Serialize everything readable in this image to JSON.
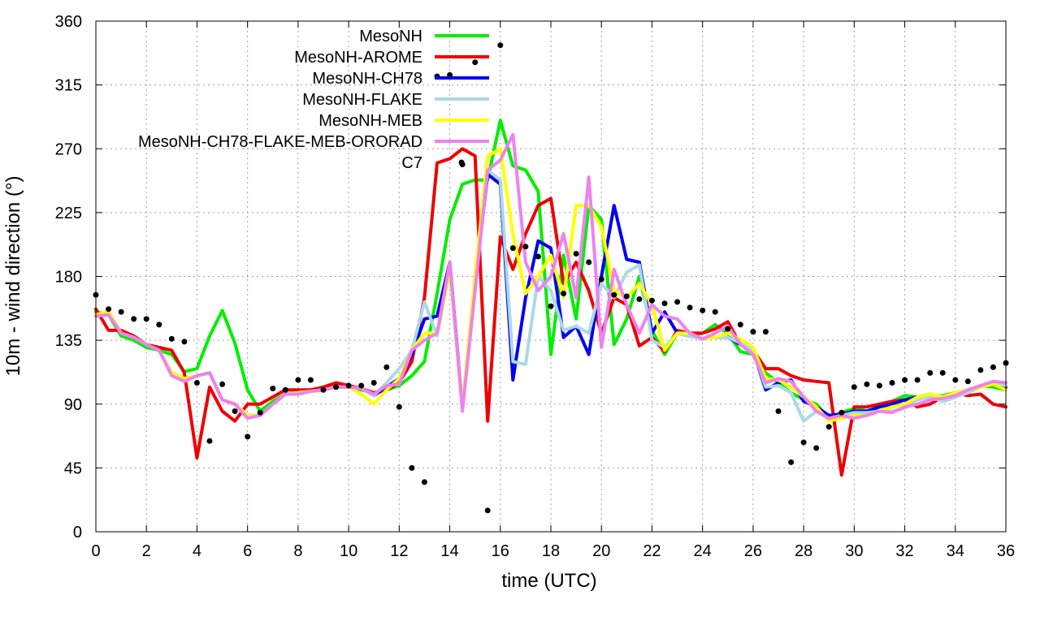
{
  "chart_data": {
    "type": "line",
    "title": "",
    "xlabel": "time (UTC)",
    "ylabel": "10m - wind direction (°)",
    "xlim": [
      0,
      36
    ],
    "ylim": [
      0,
      360
    ],
    "xticks": [
      0,
      2,
      4,
      6,
      8,
      10,
      12,
      14,
      16,
      18,
      20,
      22,
      24,
      26,
      28,
      30,
      32,
      34,
      36
    ],
    "yticks": [
      0,
      45,
      90,
      135,
      180,
      225,
      270,
      315,
      360
    ],
    "xtick_labels": [
      "0",
      "2",
      "4",
      "6",
      "8",
      "10",
      "12",
      "14",
      "16",
      "18",
      "20",
      "22",
      "24",
      "26",
      "28",
      "30",
      "32",
      "34",
      "36"
    ],
    "ytick_labels": [
      "0",
      "45",
      "90",
      "135",
      "180",
      "225",
      "270",
      "315",
      "360"
    ],
    "grid": "dashed",
    "legend_position": "top-center",
    "series": [
      {
        "name": "MesoNH",
        "color": "#00ee00",
        "style": "line",
        "x": [
          0,
          0.5,
          1,
          1.5,
          2,
          2.5,
          3,
          3.5,
          4,
          4.5,
          5,
          5.5,
          6,
          6.5,
          7,
          7.5,
          8,
          8.5,
          9,
          9.5,
          10,
          10.5,
          11,
          11.5,
          12,
          12.5,
          13,
          13.5,
          14,
          14.5,
          15,
          15.5,
          16,
          16.5,
          17,
          17.5,
          18,
          18.5,
          19,
          19.5,
          20,
          20.5,
          21,
          21.5,
          22,
          22.5,
          23,
          23.5,
          24,
          24.5,
          25,
          25.5,
          26,
          26.5,
          27,
          27.5,
          28,
          28.5,
          29,
          29.5,
          30,
          30.5,
          31,
          31.5,
          32,
          32.5,
          33,
          33.5,
          34,
          34.5,
          35,
          35.5,
          36
        ],
        "values": [
          155,
          153,
          138,
          135,
          130,
          128,
          125,
          113,
          115,
          138,
          156,
          133,
          100,
          85,
          92,
          97,
          98,
          100,
          102,
          102,
          102,
          100,
          98,
          100,
          103,
          110,
          120,
          168,
          220,
          245,
          248,
          248,
          290,
          258,
          255,
          240,
          125,
          195,
          150,
          230,
          220,
          132,
          150,
          180,
          142,
          125,
          140,
          138,
          140,
          146,
          140,
          127,
          125,
          112,
          105,
          98,
          93,
          90,
          80,
          84,
          87,
          85,
          88,
          92,
          96,
          95,
          95,
          96,
          98,
          100,
          103,
          102,
          100
        ]
      },
      {
        "name": "MesoNH-AROME",
        "color": "#ee0000",
        "style": "line",
        "x": [
          0,
          0.5,
          1,
          1.5,
          2,
          2.5,
          3,
          3.5,
          4,
          4.5,
          5,
          5.5,
          6,
          6.5,
          7,
          7.5,
          8,
          8.5,
          9,
          9.5,
          10,
          10.5,
          11,
          11.5,
          12,
          12.5,
          13,
          13.5,
          14,
          14.5,
          15,
          15.5,
          16,
          16.5,
          17,
          17.5,
          18,
          18.5,
          19,
          19.5,
          20,
          20.5,
          21,
          21.5,
          22,
          22.5,
          23,
          23.5,
          24,
          24.5,
          25,
          25.5,
          26,
          26.5,
          27,
          27.5,
          28,
          28.5,
          29,
          29.5,
          30,
          30.5,
          31,
          31.5,
          32,
          32.5,
          33,
          33.5,
          34,
          34.5,
          35,
          35.5,
          36
        ],
        "values": [
          157,
          142,
          142,
          138,
          132,
          130,
          128,
          112,
          52,
          102,
          85,
          78,
          90,
          90,
          95,
          100,
          100,
          100,
          102,
          105,
          103,
          101,
          98,
          100,
          105,
          120,
          165,
          260,
          263,
          270,
          265,
          78,
          208,
          185,
          210,
          230,
          235,
          175,
          190,
          170,
          140,
          165,
          160,
          131,
          137,
          127,
          142,
          140,
          140,
          143,
          148,
          132,
          128,
          115,
          115,
          110,
          107,
          106,
          105,
          40,
          88,
          88,
          90,
          92,
          93,
          88,
          90,
          95,
          98,
          96,
          97,
          90,
          88
        ]
      },
      {
        "name": "MesoNH-CH78",
        "color": "#0000ee",
        "style": "line",
        "x": [
          0,
          0.5,
          1,
          1.5,
          2,
          2.5,
          3,
          3.5,
          4,
          4.5,
          5,
          5.5,
          6,
          6.5,
          7,
          7.5,
          8,
          8.5,
          9,
          9.5,
          10,
          10.5,
          11,
          11.5,
          12,
          12.5,
          13,
          13.5,
          14,
          14.5,
          15,
          15.5,
          16,
          16.5,
          17,
          17.5,
          18,
          18.5,
          19,
          19.5,
          20,
          20.5,
          21,
          21.5,
          22,
          22.5,
          23,
          23.5,
          24,
          24.5,
          25,
          25.5,
          26,
          26.5,
          27,
          27.5,
          28,
          28.5,
          29,
          29.5,
          30,
          30.5,
          31,
          31.5,
          32,
          32.5,
          33,
          33.5,
          34,
          34.5,
          35,
          35.5,
          36
        ],
        "values": [
          153,
          155,
          140,
          137,
          132,
          128,
          112,
          108,
          110,
          112,
          93,
          90,
          82,
          82,
          90,
          97,
          98,
          99,
          100,
          102,
          102,
          101,
          96,
          102,
          108,
          125,
          150,
          152,
          190,
          88,
          175,
          252,
          245,
          107,
          165,
          205,
          200,
          137,
          145,
          125,
          180,
          230,
          192,
          190,
          140,
          155,
          140,
          138,
          136,
          137,
          137,
          132,
          128,
          100,
          105,
          107,
          92,
          88,
          82,
          83,
          85,
          85,
          88,
          90,
          93,
          95,
          97,
          92,
          95,
          100,
          102,
          104,
          102
        ]
      },
      {
        "name": "MesoNH-FLAKE",
        "color": "#add8e6",
        "style": "line",
        "x": [
          0,
          0.5,
          1,
          1.5,
          2,
          2.5,
          3,
          3.5,
          4,
          4.5,
          5,
          5.5,
          6,
          6.5,
          7,
          7.5,
          8,
          8.5,
          9,
          9.5,
          10,
          10.5,
          11,
          11.5,
          12,
          12.5,
          13,
          13.5,
          14,
          14.5,
          15,
          15.5,
          16,
          16.5,
          17,
          17.5,
          18,
          18.5,
          19,
          19.5,
          20,
          20.5,
          21,
          21.5,
          22,
          22.5,
          23,
          23.5,
          24,
          24.5,
          25,
          25.5,
          26,
          26.5,
          27,
          27.5,
          28,
          28.5,
          29,
          29.5,
          30,
          30.5,
          31,
          31.5,
          32,
          32.5,
          33,
          33.5,
          34,
          34.5,
          35,
          35.5,
          36
        ],
        "values": [
          153,
          155,
          140,
          137,
          132,
          128,
          112,
          108,
          110,
          112,
          93,
          90,
          82,
          82,
          90,
          97,
          98,
          99,
          100,
          102,
          102,
          101,
          96,
          105,
          115,
          128,
          162,
          138,
          185,
          88,
          175,
          255,
          248,
          120,
          118,
          180,
          170,
          142,
          145,
          140,
          175,
          165,
          183,
          188,
          135,
          130,
          140,
          138,
          136,
          137,
          137,
          133,
          128,
          102,
          103,
          98,
          78,
          85,
          80,
          82,
          84,
          84,
          85,
          85,
          87,
          93,
          95,
          92,
          95,
          98,
          102,
          105,
          103
        ]
      },
      {
        "name": "MesoNH-MEB",
        "color": "#ffff00",
        "style": "line",
        "x": [
          0,
          0.5,
          1,
          1.5,
          2,
          2.5,
          3,
          3.5,
          4,
          4.5,
          5,
          5.5,
          6,
          6.5,
          7,
          7.5,
          8,
          8.5,
          9,
          9.5,
          10,
          10.5,
          11,
          11.5,
          12,
          12.5,
          13,
          13.5,
          14,
          14.5,
          15,
          15.5,
          16,
          16.5,
          17,
          17.5,
          18,
          18.5,
          19,
          19.5,
          20,
          20.5,
          21,
          21.5,
          22,
          22.5,
          23,
          23.5,
          24,
          24.5,
          25,
          25.5,
          26,
          26.5,
          27,
          27.5,
          28,
          28.5,
          29,
          29.5,
          30,
          30.5,
          31,
          31.5,
          32,
          32.5,
          33,
          33.5,
          34,
          34.5,
          35,
          35.5,
          36
        ],
        "values": [
          153,
          155,
          140,
          137,
          132,
          128,
          112,
          108,
          110,
          112,
          93,
          90,
          82,
          82,
          90,
          97,
          98,
          99,
          100,
          102,
          102,
          97,
          90,
          100,
          108,
          128,
          140,
          140,
          185,
          88,
          180,
          265,
          270,
          210,
          168,
          180,
          195,
          165,
          230,
          230,
          215,
          170,
          165,
          175,
          160,
          128,
          140,
          140,
          136,
          137,
          140,
          136,
          130,
          108,
          107,
          102,
          95,
          88,
          78,
          80,
          82,
          82,
          85,
          88,
          90,
          95,
          97,
          95,
          98,
          100,
          102,
          104,
          100
        ]
      },
      {
        "name": "MesoNH-CH78-FLAKE-MEB-ORORAD",
        "color": "#ee82ee",
        "style": "line",
        "x": [
          0,
          0.5,
          1,
          1.5,
          2,
          2.5,
          3,
          3.5,
          4,
          4.5,
          5,
          5.5,
          6,
          6.5,
          7,
          7.5,
          8,
          8.5,
          9,
          9.5,
          10,
          10.5,
          11,
          11.5,
          12,
          12.5,
          13,
          13.5,
          14,
          14.5,
          15,
          15.5,
          16,
          16.5,
          17,
          17.5,
          18,
          18.5,
          19,
          19.5,
          20,
          20.5,
          21,
          21.5,
          22,
          22.5,
          23,
          23.5,
          24,
          24.5,
          25,
          25.5,
          26,
          26.5,
          27,
          27.5,
          28,
          28.5,
          29,
          29.5,
          30,
          30.5,
          31,
          31.5,
          32,
          32.5,
          33,
          33.5,
          34,
          34.5,
          35,
          35.5,
          36
        ],
        "values": [
          152,
          153,
          140,
          137,
          132,
          128,
          110,
          106,
          110,
          112,
          93,
          90,
          80,
          82,
          90,
          97,
          97,
          99,
          100,
          102,
          102,
          101,
          97,
          103,
          104,
          128,
          135,
          140,
          190,
          85,
          170,
          255,
          262,
          280,
          190,
          170,
          180,
          210,
          165,
          250,
          130,
          185,
          160,
          140,
          160,
          152,
          150,
          140,
          136,
          140,
          145,
          132,
          125,
          105,
          108,
          106,
          95,
          85,
          80,
          82,
          80,
          82,
          85,
          84,
          88,
          90,
          93,
          94,
          96,
          100,
          103,
          106,
          105
        ]
      },
      {
        "name": "C7",
        "color": "#000000",
        "style": "points",
        "x": [
          0,
          0.5,
          1,
          1.5,
          2,
          2.5,
          3,
          3.5,
          4,
          4.5,
          5,
          5.5,
          6,
          6.5,
          7,
          7.5,
          8,
          8.5,
          9,
          9.5,
          10,
          10.5,
          11,
          11.5,
          12,
          12.5,
          13,
          13.5,
          14,
          14.5,
          15,
          15.5,
          16,
          16.5,
          17,
          17.5,
          18,
          18.5,
          19,
          19.5,
          20,
          20.5,
          21,
          21.5,
          22,
          22.5,
          23,
          23.5,
          24,
          24.5,
          25,
          25.5,
          26,
          26.5,
          27,
          27.5,
          28,
          28.5,
          29,
          29.5,
          30,
          30.5,
          31,
          31.5,
          32,
          32.5,
          33,
          33.5,
          34,
          34.5,
          35,
          35.5,
          36
        ],
        "values": [
          167,
          157,
          155,
          150,
          150,
          146,
          136,
          134,
          105,
          64,
          104,
          85,
          67,
          84,
          101,
          100,
          107,
          107,
          100,
          102,
          103,
          103,
          105,
          116,
          88,
          45,
          35,
          321,
          322,
          259,
          331,
          15,
          343,
          200,
          201,
          194,
          159,
          168,
          196,
          190,
          178,
          167,
          166,
          164,
          163,
          161,
          162,
          158,
          156,
          155,
          143,
          146,
          141,
          141,
          85,
          49,
          63,
          59,
          74,
          84,
          102,
          104,
          103,
          105,
          107,
          107,
          112,
          112,
          107,
          106,
          114,
          116,
          119
        ]
      }
    ]
  }
}
